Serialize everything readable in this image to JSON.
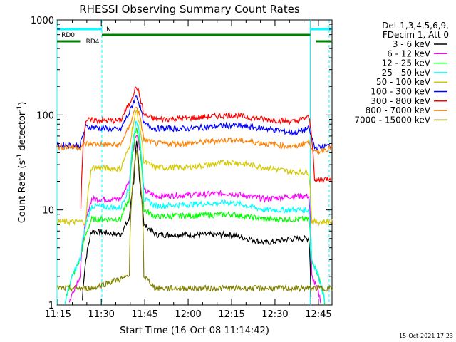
{
  "chart_data": {
    "type": "line",
    "title": "RHESSI Observing Summary Count Rates",
    "xlabel": "Start Time (16-Oct-08 11:14:42)",
    "ylabel_main": "Count Rate (s",
    "ylabel_sup1": "-1",
    "ylabel_mid": " detector",
    "ylabel_sup2": "-1",
    "ylabel_end": ")",
    "y_log": true,
    "ylim": [
      1,
      1000
    ],
    "x_range_minutes": [
      0,
      95
    ],
    "x_ticks": [
      {
        "label": "11:15",
        "minute": 0.3
      },
      {
        "label": "11:30",
        "minute": 15.3
      },
      {
        "label": "11:45",
        "minute": 30.3
      },
      {
        "label": "12:00",
        "minute": 45.3
      },
      {
        "label": "12:15",
        "minute": 60.3
      },
      {
        "label": "12:30",
        "minute": 75.3
      },
      {
        "label": "12:45",
        "minute": 90.3
      }
    ],
    "y_ticks": [
      {
        "label": "1",
        "value": 1
      },
      {
        "label": "10",
        "value": 10
      },
      {
        "label": "100",
        "value": 100
      },
      {
        "label": "1000",
        "value": 1000
      }
    ],
    "legend_header": [
      "Det 1,3,4,5,6,9,",
      "FDecim 1, Att 0"
    ],
    "legend_position": "right",
    "grid": false,
    "series": [
      {
        "name": "3 - 6 keV",
        "color": "#000000",
        "points": [
          [
            0,
            0
          ],
          [
            8,
            0
          ],
          [
            12,
            6
          ],
          [
            22,
            5.5
          ],
          [
            25,
            8
          ],
          [
            26.5,
            20
          ],
          [
            27.5,
            50
          ],
          [
            28.5,
            20
          ],
          [
            30,
            7
          ],
          [
            34,
            5.5
          ],
          [
            60,
            5.5
          ],
          [
            72,
            4.5
          ],
          [
            82,
            5
          ],
          [
            87,
            5
          ],
          [
            88,
            0
          ],
          [
            95,
            0
          ]
        ]
      },
      {
        "name": "6 - 12 keV",
        "color": "#ff00ff",
        "points": [
          [
            0,
            0
          ],
          [
            8,
            2
          ],
          [
            12,
            13
          ],
          [
            22,
            13
          ],
          [
            25,
            20
          ],
          [
            27.5,
            65
          ],
          [
            30,
            16
          ],
          [
            34,
            14
          ],
          [
            60,
            15
          ],
          [
            72,
            13
          ],
          [
            82,
            14
          ],
          [
            87,
            14
          ],
          [
            88,
            2
          ],
          [
            95,
            0
          ]
        ]
      },
      {
        "name": "12 - 25 keV",
        "color": "#00ff00",
        "points": [
          [
            0,
            0
          ],
          [
            8,
            3
          ],
          [
            12,
            8
          ],
          [
            22,
            8
          ],
          [
            25,
            13
          ],
          [
            27.5,
            75
          ],
          [
            30,
            10
          ],
          [
            34,
            8.5
          ],
          [
            60,
            9
          ],
          [
            72,
            8
          ],
          [
            82,
            8
          ],
          [
            87,
            8
          ],
          [
            88,
            3
          ],
          [
            95,
            0
          ]
        ]
      },
      {
        "name": "25 - 50 keV",
        "color": "#00ffff",
        "points": [
          [
            0,
            0
          ],
          [
            8,
            3
          ],
          [
            12,
            11
          ],
          [
            22,
            10.5
          ],
          [
            25,
            17
          ],
          [
            27.5,
            90
          ],
          [
            30,
            13
          ],
          [
            34,
            11
          ],
          [
            60,
            12
          ],
          [
            72,
            10
          ],
          [
            82,
            10
          ],
          [
            87,
            10
          ],
          [
            88,
            3
          ],
          [
            95,
            0
          ]
        ]
      },
      {
        "name": "50 - 100 keV",
        "color": "#d4c800",
        "points": [
          [
            0,
            7.5
          ],
          [
            8,
            7.5
          ],
          [
            10,
            7.5
          ],
          [
            12,
            28
          ],
          [
            22,
            27
          ],
          [
            25,
            45
          ],
          [
            27.5,
            110
          ],
          [
            30,
            32
          ],
          [
            34,
            28
          ],
          [
            45,
            28
          ],
          [
            60,
            32
          ],
          [
            72,
            28
          ],
          [
            82,
            25
          ],
          [
            87,
            25
          ],
          [
            88,
            7.5
          ],
          [
            95,
            7.5
          ]
        ]
      },
      {
        "name": "100 - 300 keV",
        "color": "#0000ff",
        "points": [
          [
            0,
            48
          ],
          [
            8,
            48
          ],
          [
            10,
            75
          ],
          [
            22,
            70
          ],
          [
            25,
            105
          ],
          [
            27.5,
            160
          ],
          [
            30,
            80
          ],
          [
            34,
            72
          ],
          [
            45,
            72
          ],
          [
            60,
            78
          ],
          [
            72,
            72
          ],
          [
            82,
            65
          ],
          [
            87,
            72
          ],
          [
            89,
            45
          ],
          [
            95,
            48
          ]
        ]
      },
      {
        "name": "300 - 800 keV",
        "color": "#ff0000",
        "points": [
          [
            0,
            0
          ],
          [
            8,
            0
          ],
          [
            10,
            88
          ],
          [
            22,
            87
          ],
          [
            25,
            130
          ],
          [
            27.5,
            200
          ],
          [
            30,
            100
          ],
          [
            34,
            90
          ],
          [
            45,
            92
          ],
          [
            60,
            100
          ],
          [
            72,
            90
          ],
          [
            82,
            85
          ],
          [
            87,
            95
          ],
          [
            89,
            20
          ],
          [
            95,
            22
          ]
        ]
      },
      {
        "name": "800 - 7000 keV",
        "color": "#ff8000",
        "points": [
          [
            0,
            46
          ],
          [
            8,
            46
          ],
          [
            10,
            50
          ],
          [
            22,
            48
          ],
          [
            25,
            75
          ],
          [
            27.5,
            125
          ],
          [
            30,
            55
          ],
          [
            34,
            50
          ],
          [
            45,
            50
          ],
          [
            60,
            55
          ],
          [
            72,
            50
          ],
          [
            82,
            46
          ],
          [
            87,
            52
          ],
          [
            89,
            40
          ],
          [
            95,
            46
          ]
        ]
      },
      {
        "name": "7000 - 15000 keV",
        "color": "#808000",
        "points": [
          [
            0,
            1.5
          ],
          [
            8,
            1.5
          ],
          [
            12,
            1.5
          ],
          [
            25,
            2
          ],
          [
            27.5,
            40
          ],
          [
            30,
            2
          ],
          [
            34,
            1.5
          ],
          [
            87,
            1.5
          ],
          [
            95,
            1.5
          ]
        ]
      }
    ],
    "annotations": {
      "rd0_label": "RD0",
      "rd4_label": "RD4",
      "n_label": "N",
      "footer_date": "15-Oct-2021 17:23"
    }
  }
}
